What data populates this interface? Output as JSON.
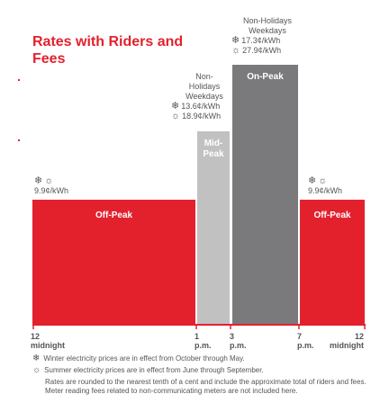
{
  "title": "Rates with Riders and Fees",
  "colors": {
    "off_peak": "#e3212d",
    "mid_peak": "#c1c1c1",
    "on_peak": "#7a7a7c",
    "axis": "#e3212d"
  },
  "icons": {
    "winter": "snowflake-icon",
    "summer": "sun-icon"
  },
  "chart_data": {
    "type": "bar",
    "title": "Rates with Riders and Fees",
    "x_unit": "hour of day",
    "xlim": [
      0,
      24
    ],
    "y_unit": "¢/kWh",
    "series": [
      {
        "label": "Off-Peak",
        "start": "12 midnight",
        "end": "1 p.m.",
        "start_hour": 0,
        "end_hour": 13,
        "winter": 9.9,
        "summer": 9.9
      },
      {
        "label": "Mid-Peak",
        "start": "1 p.m.",
        "end": "3 p.m.",
        "start_hour": 13,
        "end_hour": 15,
        "winter": 13.6,
        "summer": 18.9,
        "condition": "Non-Holidays Weekdays"
      },
      {
        "label": "On-Peak",
        "start": "3 p.m.",
        "end": "7 p.m.",
        "start_hour": 15,
        "end_hour": 19,
        "winter": 17.3,
        "summer": 27.9,
        "condition": "Non-Holidays Weekdays"
      },
      {
        "label": "Off-Peak",
        "start": "7 p.m.",
        "end": "12 midnight",
        "start_hour": 19,
        "end_hour": 24,
        "winter": 9.9,
        "summer": 9.9
      }
    ]
  },
  "annotations": {
    "off_left": {
      "rate": "9.9¢/kWh"
    },
    "mid": {
      "condition": "Non-\nHolidays\nWeekdays",
      "winter": "13.6¢/kWh",
      "summer": "18.9¢/kWh"
    },
    "on": {
      "condition": "Non-Holidays\nWeekdays",
      "winter": "17.3¢/kWh",
      "summer": "27.9¢/kWh"
    },
    "off_right": {
      "rate": "9.9¢/kWh"
    }
  },
  "bar_labels": {
    "off_left": "Off-Peak",
    "mid": "Mid-\nPeak",
    "on": "On-Peak",
    "off_right": "Off-Peak"
  },
  "ticks": {
    "t12": "12\nmidnight",
    "t1": "1\np.m.",
    "t3": "3\np.m.",
    "t7": "7\np.m.",
    "t12b": "12\nmidnight"
  },
  "notes": {
    "winter": "Winter electricity prices are in effect from October through May.",
    "summer": "Summer electricity prices are in effect from June through September.",
    "rounding": "Rates are rounded to the nearest tenth of a cent and include the approximate total of riders and fees. Meter reading fees related to non-communicating meters are not included here."
  }
}
